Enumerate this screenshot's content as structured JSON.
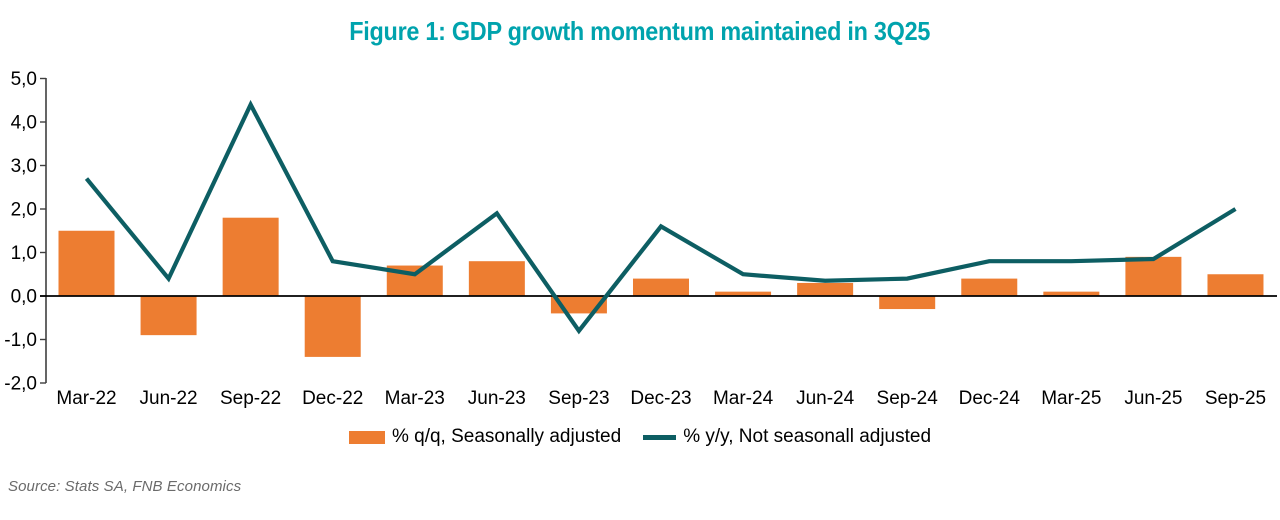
{
  "title": "Figure 1: GDP growth momentum maintained in 3Q25",
  "source": "Source: Stats SA, FNB Economics",
  "colors": {
    "title": "#00A3AD",
    "bar": "#ED7D31",
    "line": "#0D5E63",
    "axis": "#3f3f3f",
    "zero_line": "#000000",
    "tick_text": "#000000",
    "source_text": "#6b6b6b"
  },
  "chart_data": {
    "type": "bar",
    "subtype": "bar+line combo",
    "title": "Figure 1: GDP growth momentum maintained in 3Q25",
    "categories": [
      "Mar-22",
      "Jun-22",
      "Sep-22",
      "Dec-22",
      "Mar-23",
      "Jun-23",
      "Sep-23",
      "Dec-23",
      "Mar-24",
      "Jun-24",
      "Sep-24",
      "Dec-24",
      "Mar-25",
      "Jun-25",
      "Sep-25"
    ],
    "series": [
      {
        "name": "% q/q, Seasonally adjusted",
        "type": "bar",
        "color": "#ED7D31",
        "values": [
          1.5,
          -0.9,
          1.8,
          -1.4,
          0.7,
          0.8,
          -0.4,
          0.4,
          0.1,
          0.3,
          -0.3,
          0.4,
          0.1,
          0.9,
          0.5
        ]
      },
      {
        "name": "% y/y, Not seasonall adjusted",
        "type": "line",
        "color": "#0D5E63",
        "values": [
          2.7,
          0.4,
          4.4,
          0.8,
          0.5,
          1.9,
          -0.8,
          1.6,
          0.5,
          0.35,
          0.4,
          0.8,
          0.8,
          0.85,
          2.0
        ]
      }
    ],
    "xlabel": "",
    "ylabel": "",
    "ylim": [
      -2.0,
      5.0
    ],
    "ytick_step": 1.0,
    "ytick_labels": [
      "5,0",
      "4,0",
      "3,0",
      "2,0",
      "1,0",
      "0,0",
      "-1,0",
      "-2,0"
    ],
    "decimal_separator": ",",
    "grid": false,
    "legend_position": "bottom"
  }
}
